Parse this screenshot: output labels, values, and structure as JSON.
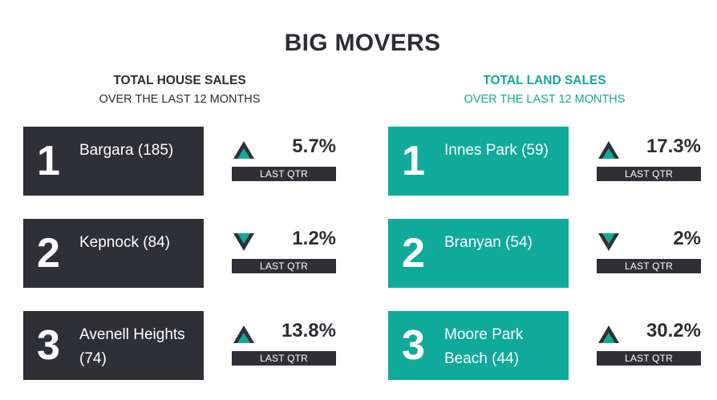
{
  "title": "BIG MOVERS",
  "colors": {
    "dark": "#2f3036",
    "teal": "#10aa9b",
    "text": "#2d2e33"
  },
  "house": {
    "heading": "TOTAL HOUSE SALES",
    "subheading": "OVER THE LAST 12 MONTHS",
    "items": [
      {
        "rank": "1",
        "suburb": "Bargara (185)",
        "direction": "up",
        "change": "5.7%",
        "period": "LAST QTR"
      },
      {
        "rank": "2",
        "suburb": "Kepnock (84)",
        "direction": "down",
        "change": "1.2%",
        "period": "LAST QTR"
      },
      {
        "rank": "3",
        "suburb": "Avenell Heights (74)",
        "direction": "up",
        "change": "13.8%",
        "period": "LAST QTR"
      }
    ]
  },
  "land": {
    "heading": "TOTAL LAND SALES",
    "subheading": "OVER THE LAST 12 MONTHS",
    "items": [
      {
        "rank": "1",
        "suburb": "Innes Park (59)",
        "direction": "up",
        "change": "17.3%",
        "period": "LAST QTR"
      },
      {
        "rank": "2",
        "suburb": "Branyan (54)",
        "direction": "down",
        "change": "2%",
        "period": "LAST QTR"
      },
      {
        "rank": "3",
        "suburb": "Moore Park Beach (44)",
        "direction": "up",
        "change": "30.2%",
        "period": "LAST QTR"
      }
    ]
  }
}
